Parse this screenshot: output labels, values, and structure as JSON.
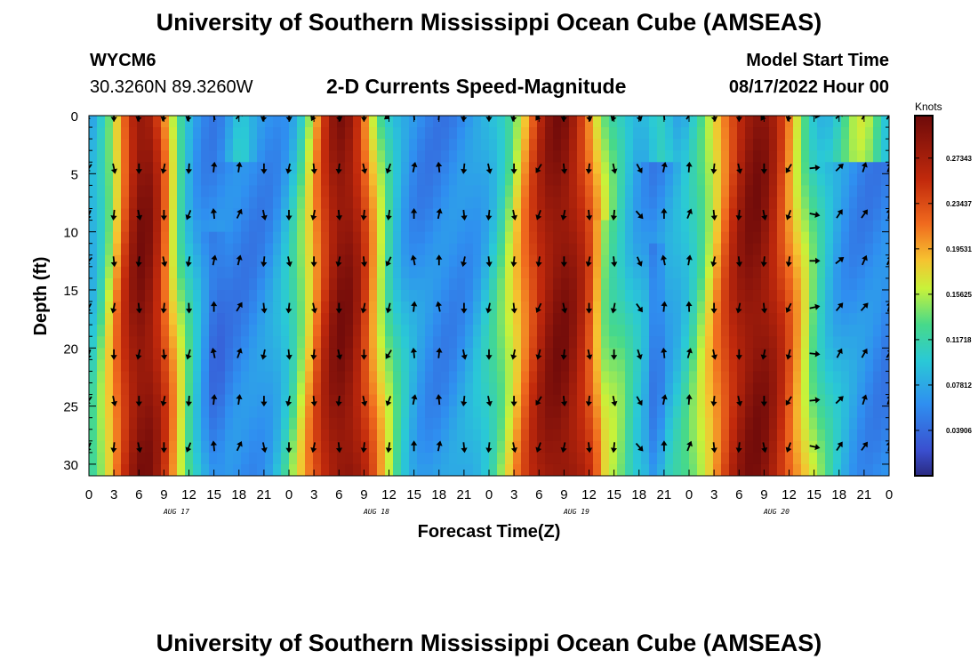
{
  "page": {
    "title": "University of Southern Mississippi Ocean Cube (AMSEAS)",
    "title_repeat": "University of Southern Mississippi Ocean Cube (AMSEAS)",
    "station": "WYCM6",
    "coords": "30.3260N  89.3260W",
    "subtitle": "2-D Currents Speed-Magnitude",
    "model_start_label": "Model Start Time",
    "model_start_value": "08/17/2022 Hour 00"
  },
  "chart_data": {
    "type": "heatmap",
    "title": "2-D Currents Speed-Magnitude",
    "xlabel": "Forecast Time(Z)",
    "ylabel": "Depth (ft)",
    "x_range_hours": [
      0,
      96
    ],
    "y_range_ft": [
      0,
      31
    ],
    "x_tick_labels": [
      "0",
      "3",
      "6",
      "9",
      "12",
      "15",
      "18",
      "21",
      "0",
      "3",
      "6",
      "9",
      "12",
      "15",
      "18",
      "21",
      "0",
      "3",
      "6",
      "9",
      "12",
      "15",
      "18",
      "21",
      "0",
      "3",
      "6",
      "9",
      "12",
      "15",
      "18",
      "21",
      "0"
    ],
    "y_tick_labels": [
      "0",
      "5",
      "10",
      "15",
      "20",
      "25",
      "30"
    ],
    "date_labels": [
      "AUG 17",
      "AUG 18",
      "AUG 19",
      "AUG 20"
    ],
    "colorbar": {
      "units": "Knots",
      "ticks": [
        "0.27343",
        "0.23437",
        "0.19531",
        "0.15625",
        "0.11718",
        "0.07812",
        "0.03906"
      ],
      "tick_values": [
        0.27343,
        0.23437,
        0.19531,
        0.15625,
        0.11718,
        0.07812,
        0.03906
      ],
      "range": [
        0.0,
        0.31
      ]
    },
    "speed_profile_peaks_hours": [
      6.5,
      30.5,
      56.5,
      80
    ],
    "speed_profile_minima_hours": [
      0,
      12,
      20,
      24,
      36,
      42,
      48,
      64,
      68,
      72,
      90,
      96
    ],
    "vector_depths_ft": [
      0,
      4.5,
      8.5,
      12.5,
      16.5,
      20.5,
      24.5,
      28.5
    ],
    "vector_times_hours": [
      0,
      3,
      6,
      9,
      12,
      15,
      18,
      21,
      24,
      27,
      30,
      33,
      36,
      39,
      42,
      45,
      48,
      51,
      54,
      57,
      60,
      63,
      66,
      69,
      72,
      75,
      78,
      81,
      84,
      87,
      90,
      93,
      96
    ],
    "vector_direction_by_time_deg": [
      210,
      180,
      180,
      180,
      190,
      0,
      20,
      180,
      180,
      180,
      180,
      180,
      200,
      0,
      0,
      180,
      180,
      180,
      200,
      180,
      180,
      180,
      150,
      0,
      10,
      180,
      180,
      180,
      200,
      90,
      40,
      30,
      20
    ]
  }
}
